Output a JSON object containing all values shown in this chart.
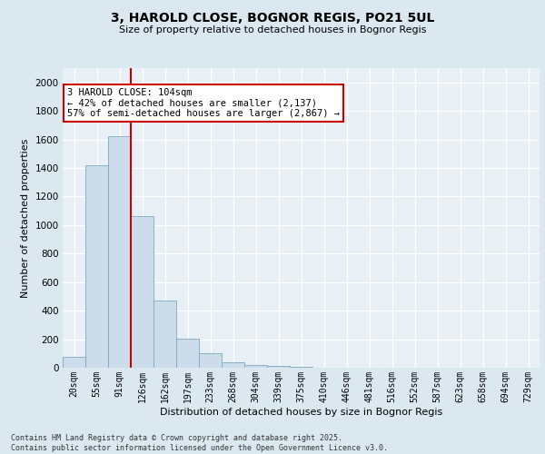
{
  "title_line1": "3, HAROLD CLOSE, BOGNOR REGIS, PO21 5UL",
  "title_line2": "Size of property relative to detached houses in Bognor Regis",
  "xlabel": "Distribution of detached houses by size in Bognor Regis",
  "ylabel": "Number of detached properties",
  "categories": [
    "20sqm",
    "55sqm",
    "91sqm",
    "126sqm",
    "162sqm",
    "197sqm",
    "233sqm",
    "268sqm",
    "304sqm",
    "339sqm",
    "375sqm",
    "410sqm",
    "446sqm",
    "481sqm",
    "516sqm",
    "552sqm",
    "587sqm",
    "623sqm",
    "658sqm",
    "694sqm",
    "729sqm"
  ],
  "values": [
    75,
    1420,
    1620,
    1060,
    470,
    205,
    105,
    40,
    20,
    10,
    5,
    3,
    2,
    1,
    1,
    0,
    0,
    0,
    0,
    0,
    0
  ],
  "bar_color": "#ccdcea",
  "bar_edge_color": "#7aaabb",
  "vline_x": 3.0,
  "vline_color": "#cc0000",
  "annotation_text": "3 HAROLD CLOSE: 104sqm\n← 42% of detached houses are smaller (2,137)\n57% of semi-detached houses are larger (2,867) →",
  "annotation_box_color": "white",
  "annotation_box_edge_color": "#cc0000",
  "ylim": [
    0,
    2100
  ],
  "yticks": [
    0,
    200,
    400,
    600,
    800,
    1000,
    1200,
    1400,
    1600,
    1800,
    2000
  ],
  "footer_line1": "Contains HM Land Registry data © Crown copyright and database right 2025.",
  "footer_line2": "Contains public sector information licensed under the Open Government Licence v3.0.",
  "fig_bg_color": "#dce8f0",
  "plot_bg_color": "#e8f0f6",
  "title_fontsize": 10,
  "subtitle_fontsize": 8,
  "ylabel_fontsize": 8,
  "xlabel_fontsize": 8,
  "tick_fontsize": 7,
  "footer_fontsize": 6,
  "ann_fontsize": 7.5
}
